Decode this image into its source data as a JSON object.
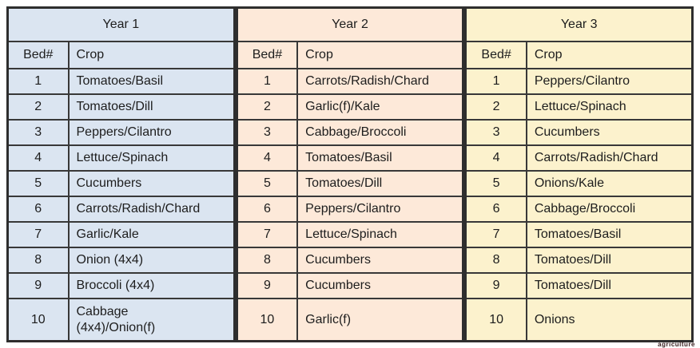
{
  "watermark": "agriculture",
  "colors": {
    "year1_fill": "#dbe5f1",
    "year2_fill": "#fde9d9",
    "year3_fill": "#fcf2cd",
    "border": "#383838",
    "text": "#1d1d1d"
  },
  "years": [
    {
      "title": "Year 1",
      "color": "#dbe5f1",
      "bed_header": "Bed#",
      "crop_header": "Crop",
      "rows": [
        {
          "bed": "1",
          "crop": "Tomatoes/Basil"
        },
        {
          "bed": "2",
          "crop": "Tomatoes/Dill"
        },
        {
          "bed": "3",
          "crop": "Peppers/Cilantro"
        },
        {
          "bed": "4",
          "crop": "Lettuce/Spinach"
        },
        {
          "bed": "5",
          "crop": "Cucumbers"
        },
        {
          "bed": "6",
          "crop": "Carrots/Radish/Chard"
        },
        {
          "bed": "7",
          "crop": "Garlic/Kale"
        },
        {
          "bed": "8",
          "crop": "Onion (4x4)"
        },
        {
          "bed": "9",
          "crop": "Broccoli (4x4)"
        },
        {
          "bed": "10",
          "crop": "Cabbage\n(4x4)/Onion(f)"
        }
      ]
    },
    {
      "title": "Year 2",
      "color": "#fde9d9",
      "bed_header": "Bed#",
      "crop_header": "Crop",
      "rows": [
        {
          "bed": "1",
          "crop": "Carrots/Radish/Chard"
        },
        {
          "bed": "2",
          "crop": "Garlic(f)/Kale"
        },
        {
          "bed": "3",
          "crop": "Cabbage/Broccoli"
        },
        {
          "bed": "4",
          "crop": "Tomatoes/Basil"
        },
        {
          "bed": "5",
          "crop": "Tomatoes/Dill"
        },
        {
          "bed": "6",
          "crop": "Peppers/Cilantro"
        },
        {
          "bed": "7",
          "crop": "Lettuce/Spinach"
        },
        {
          "bed": "8",
          "crop": "Cucumbers"
        },
        {
          "bed": "9",
          "crop": "Cucumbers"
        },
        {
          "bed": "10",
          "crop": "Garlic(f)"
        }
      ]
    },
    {
      "title": "Year 3",
      "color": "#fcf2cd",
      "bed_header": "Bed#",
      "crop_header": "Crop",
      "rows": [
        {
          "bed": "1",
          "crop": "Peppers/Cilantro"
        },
        {
          "bed": "2",
          "crop": "Lettuce/Spinach"
        },
        {
          "bed": "3",
          "crop": "Cucumbers"
        },
        {
          "bed": "4",
          "crop": "Carrots/Radish/Chard"
        },
        {
          "bed": "5",
          "crop": "Onions/Kale"
        },
        {
          "bed": "6",
          "crop": "Cabbage/Broccoli"
        },
        {
          "bed": "7",
          "crop": "Tomatoes/Basil"
        },
        {
          "bed": "8",
          "crop": "Tomatoes/Dill"
        },
        {
          "bed": "9",
          "crop": "Tomatoes/Dill"
        },
        {
          "bed": "10",
          "crop": "Onions"
        }
      ]
    }
  ]
}
